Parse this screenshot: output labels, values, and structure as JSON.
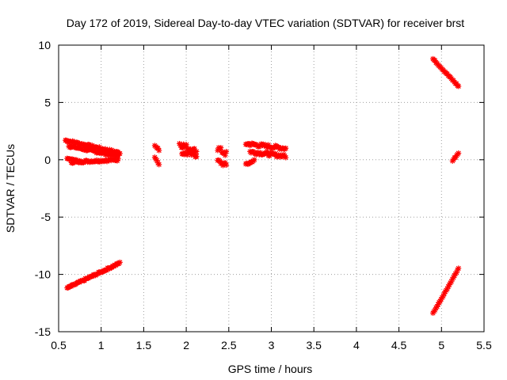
{
  "chart_data": {
    "type": "scatter",
    "title": "Day 172 of 2019, Sidereal Day-to-day VTEC variation (SDTVAR) for receiver brst",
    "xlabel": "GPS time / hours",
    "ylabel": "SDTVAR / TECUs",
    "xlim": [
      0.5,
      5.5
    ],
    "ylim": [
      -15,
      10
    ],
    "x_ticks": [
      0.5,
      1,
      1.5,
      2,
      2.5,
      3,
      3.5,
      4,
      4.5,
      5,
      5.5
    ],
    "x_tick_labels": [
      "0.5",
      "1",
      "1.5",
      "2",
      "2.5",
      "3",
      "3.5",
      "4",
      "4.5",
      "5",
      "5.5"
    ],
    "y_ticks": [
      -15,
      -10,
      -5,
      0,
      5,
      10
    ],
    "y_tick_labels": [
      "-15",
      "-10",
      "-5",
      "0",
      "5",
      "10"
    ],
    "grid": true,
    "marker": "star",
    "marker_color": "#ff0000",
    "segments": [
      {
        "name": "arc-a",
        "x_start": 0.58,
        "x_end": 1.22,
        "y_start": 1.7,
        "y_end": 0.6,
        "jitter": 0.1
      },
      {
        "name": "arc-b",
        "x_start": 0.62,
        "x_end": 1.2,
        "y_start": 1.2,
        "y_end": 0.3,
        "jitter": 0.1
      },
      {
        "name": "arc-c",
        "x_start": 0.65,
        "x_end": 1.2,
        "y_start": -0.2,
        "y_end": 0.0,
        "jitter": 0.1
      },
      {
        "name": "arc-d",
        "x_start": 0.6,
        "x_end": 0.75,
        "y_start": 0.2,
        "y_end": -0.2,
        "jitter": 0.1
      },
      {
        "name": "arc-e",
        "x_start": 0.6,
        "x_end": 1.22,
        "y_start": -11.2,
        "y_end": -9.0,
        "jitter": 0.08
      },
      {
        "name": "arc-f",
        "x_start": 1.63,
        "x_end": 1.68,
        "y_start": 1.3,
        "y_end": 0.8,
        "jitter": 0.1
      },
      {
        "name": "arc-g",
        "x_start": 1.63,
        "x_end": 1.68,
        "y_start": 0.3,
        "y_end": -0.4,
        "jitter": 0.1
      },
      {
        "name": "arc-h",
        "x_start": 1.92,
        "x_end": 2.12,
        "y_start": 1.4,
        "y_end": 0.7,
        "jitter": 0.25
      },
      {
        "name": "arc-i",
        "x_start": 1.95,
        "x_end": 2.12,
        "y_start": 0.6,
        "y_end": 0.4,
        "jitter": 0.2
      },
      {
        "name": "arc-j",
        "x_start": 2.37,
        "x_end": 2.47,
        "y_start": 1.0,
        "y_end": 0.5,
        "jitter": 0.25
      },
      {
        "name": "arc-k",
        "x_start": 2.37,
        "x_end": 2.47,
        "y_start": -0.1,
        "y_end": -0.5,
        "jitter": 0.2
      },
      {
        "name": "arc-l",
        "x_start": 2.7,
        "x_end": 3.17,
        "y_start": 1.4,
        "y_end": 1.0,
        "jitter": 0.15
      },
      {
        "name": "arc-m",
        "x_start": 2.75,
        "x_end": 3.17,
        "y_start": 0.7,
        "y_end": 0.3,
        "jitter": 0.15
      },
      {
        "name": "arc-n",
        "x_start": 2.7,
        "x_end": 2.8,
        "y_start": -0.4,
        "y_end": 0.0,
        "jitter": 0.1
      },
      {
        "name": "arc-o",
        "x_start": 4.9,
        "x_end": 5.2,
        "y_start": 8.8,
        "y_end": 6.4,
        "jitter": 0.05
      },
      {
        "name": "arc-p",
        "x_start": 5.13,
        "x_end": 5.2,
        "y_start": -0.1,
        "y_end": 0.6,
        "jitter": 0.05
      },
      {
        "name": "arc-q",
        "x_start": 4.9,
        "x_end": 5.2,
        "y_start": -13.4,
        "y_end": -9.5,
        "jitter": 0.05
      }
    ]
  }
}
